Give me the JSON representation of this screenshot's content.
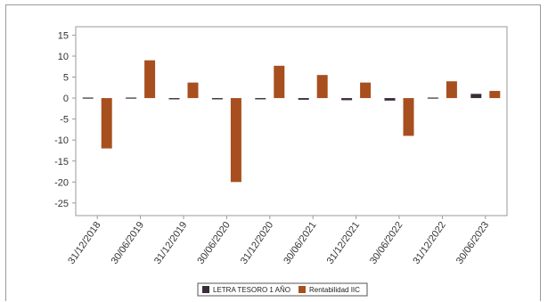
{
  "chart_data": {
    "type": "bar",
    "title": "",
    "xlabel": "",
    "ylabel": "",
    "ylim": [
      -28,
      17
    ],
    "yticks": [
      15,
      10,
      5,
      0,
      -5,
      -10,
      -15,
      -20,
      -25
    ],
    "grid": false,
    "legend_position": "bottom-center",
    "categories": [
      "31/12/2018",
      "30/06/2019",
      "31/12/2019",
      "30/06/2020",
      "31/12/2020",
      "30/06/2021",
      "31/12/2021",
      "30/06/2022",
      "31/12/2022",
      "30/06/2023"
    ],
    "series": [
      {
        "name": "LETRA TESORO 1 AÑO",
        "color": "#3b2c3a",
        "values": [
          -0.2,
          -0.2,
          -0.3,
          -0.3,
          -0.3,
          -0.4,
          -0.5,
          -0.6,
          0.1,
          1.0
        ]
      },
      {
        "name": "Rentabilidad IIC",
        "color": "#a84f1f",
        "values": [
          -12.0,
          9.0,
          3.7,
          -20.0,
          7.7,
          5.5,
          3.7,
          -9.0,
          4.0,
          1.7
        ]
      }
    ]
  }
}
